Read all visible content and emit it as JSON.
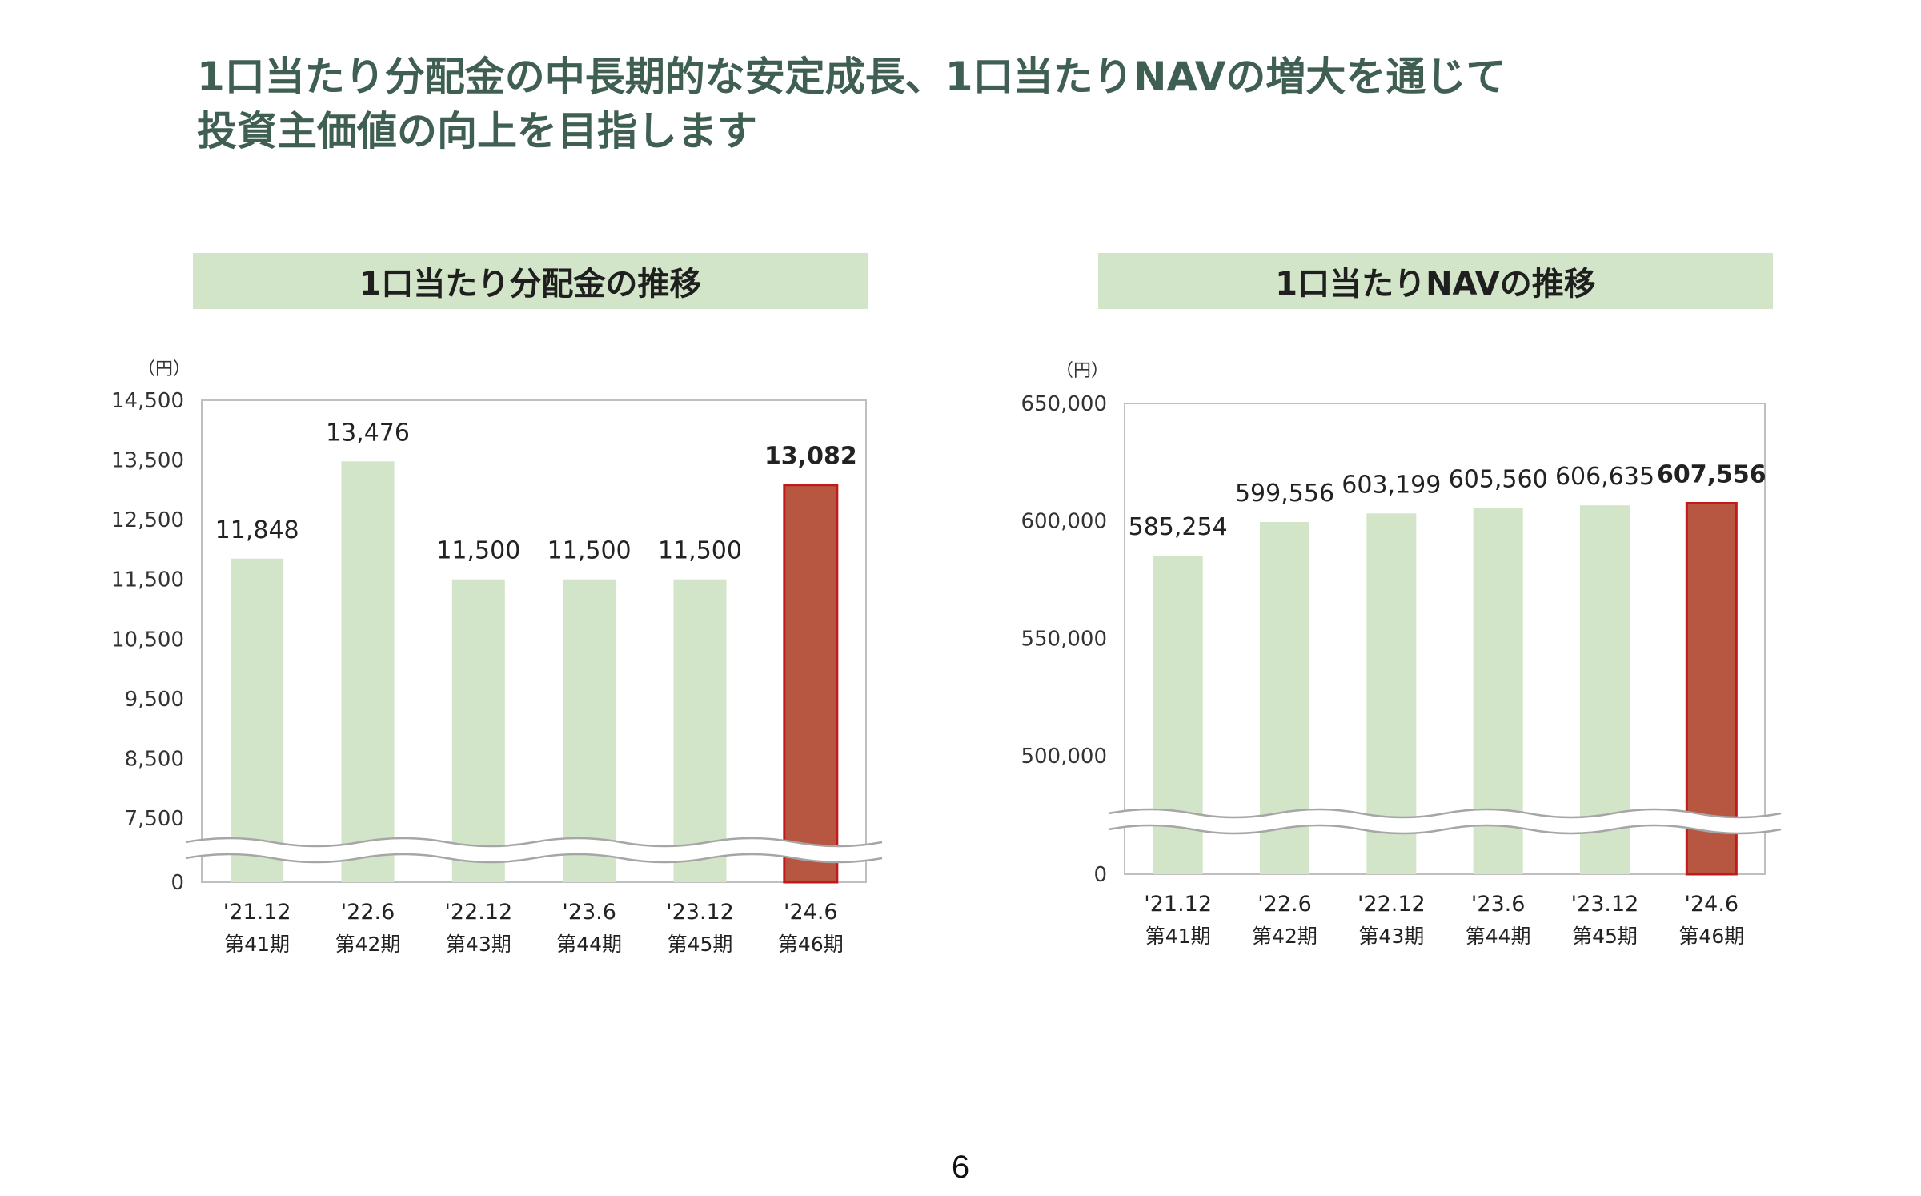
{
  "headline": {
    "line1": "1口当たり分配金の中長期的な安定成長、1口当たりNAVの増大を通じて",
    "line2": "投資主価値の向上を目指します"
  },
  "page_number": "6",
  "colors": {
    "headline": "#3f5f52",
    "header_bg": "#d2e5c8",
    "bar_normal": "#d2e5c8",
    "bar_highlight": "#b85741",
    "bar_highlight_border": "#c01a1a",
    "frame": "#bfbfbf"
  },
  "chart_data": [
    {
      "type": "bar",
      "title": "1口当たり分配金の推移",
      "unit": "（円）",
      "categories": [
        "'21.12",
        "'22.6",
        "'22.12",
        "'23.6",
        "'23.12",
        "'24.6"
      ],
      "sub_categories": [
        "第41期",
        "第42期",
        "第43期",
        "第44期",
        "第45期",
        "第46期"
      ],
      "values": [
        11848,
        13476,
        11500,
        11500,
        11500,
        13082
      ],
      "value_labels": [
        "11,848",
        "13,476",
        "11,500",
        "11,500",
        "11,500",
        "13,082"
      ],
      "highlight_index": 5,
      "y_ticks": [
        0,
        7500,
        8500,
        9500,
        10500,
        11500,
        12500,
        13500,
        14500
      ],
      "y_tick_labels": [
        "0",
        "7,500",
        "8,500",
        "9,500",
        "10,500",
        "11,500",
        "12,500",
        "13,500",
        "14,500"
      ],
      "ylim": [
        0,
        14500
      ],
      "axis_break": true,
      "grid": false
    },
    {
      "type": "bar",
      "title": "1口当たりNAVの推移",
      "unit": "（円）",
      "categories": [
        "'21.12",
        "'22.6",
        "'22.12",
        "'23.6",
        "'23.12",
        "'24.6"
      ],
      "sub_categories": [
        "第41期",
        "第42期",
        "第43期",
        "第44期",
        "第45期",
        "第46期"
      ],
      "values": [
        585254,
        599556,
        603199,
        605560,
        606635,
        607556
      ],
      "value_labels": [
        "585,254",
        "599,556",
        "603,199",
        "605,560",
        "606,635",
        "607,556"
      ],
      "highlight_index": 5,
      "y_ticks": [
        0,
        500000,
        550000,
        600000,
        650000
      ],
      "y_tick_labels": [
        "0",
        "500,000",
        "550,000",
        "600,000",
        "650,000"
      ],
      "ylim": [
        0,
        650000
      ],
      "axis_break": true,
      "grid": false
    }
  ]
}
